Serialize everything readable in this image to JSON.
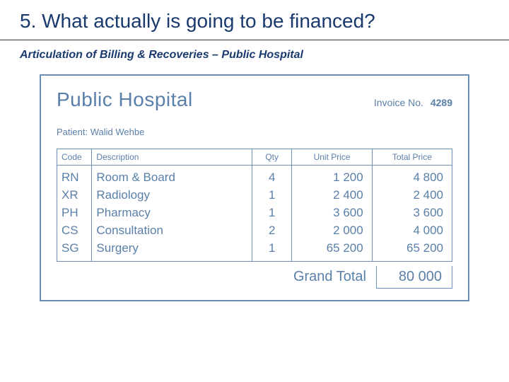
{
  "slide": {
    "title": "5. What actually is going to be financed?",
    "subtitle": "Articulation of Billing & Recoveries – Public Hospital"
  },
  "invoice": {
    "hospital_name": "Public Hospital",
    "invoice_label": "Invoice No.",
    "invoice_number": "4289",
    "patient_label": "Patient:",
    "patient_name": "Walid Wehbe",
    "columns": {
      "code": "Code",
      "description": "Description",
      "qty": "Qty",
      "unit_price": "Unit Price",
      "total_price": "Total Price"
    },
    "rows": [
      {
        "code": "RN",
        "desc": "Room & Board",
        "qty": "4",
        "unit": "1 200",
        "total": "4 800"
      },
      {
        "code": "XR",
        "desc": "Radiology",
        "qty": "1",
        "unit": "2 400",
        "total": "2 400"
      },
      {
        "code": "PH",
        "desc": "Pharmacy",
        "qty": "1",
        "unit": "3 600",
        "total": "3 600"
      },
      {
        "code": "CS",
        "desc": "Consultation",
        "qty": "2",
        "unit": "2 000",
        "total": "4 000"
      },
      {
        "code": "SG",
        "desc": "Surgery",
        "qty": "1",
        "unit": "65 200",
        "total": "65 200"
      }
    ],
    "grand_total_label": "Grand Total",
    "grand_total_value": "80 000"
  },
  "style": {
    "title_color": "#1a3a6e",
    "rule_color": "#333333",
    "box_border": "#6b8fb8",
    "text_color": "#5a7fa8",
    "background": "#ffffff"
  }
}
